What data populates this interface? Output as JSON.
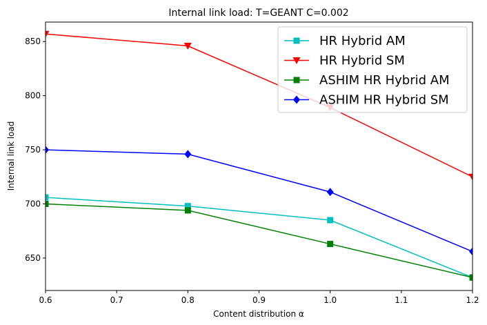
{
  "chart_data": {
    "type": "line",
    "title": "Internal link load: T=GEANT C=0.002",
    "xlabel": "Content distribution α",
    "ylabel": "Internal link load",
    "xlim": [
      0.6,
      1.2
    ],
    "ylim": [
      620,
      868
    ],
    "xticks": [
      "0.6",
      "0.7",
      "0.8",
      "0.9",
      "1.0",
      "1.1",
      "1.2"
    ],
    "yticks": [
      "650",
      "700",
      "750",
      "800",
      "850"
    ],
    "x": [
      0.6,
      0.8,
      1.0,
      1.2
    ],
    "legend_position": "top-right",
    "grid": false,
    "series": [
      {
        "name": "HR Hybrid AM",
        "color": "#00bfbf",
        "marker": "square",
        "values": [
          706,
          698,
          685,
          632
        ]
      },
      {
        "name": "HR Hybrid SM",
        "color": "#ff0000",
        "marker": "triangle-down",
        "values": [
          857,
          846,
          789,
          725
        ]
      },
      {
        "name": "ASHIM HR Hybrid AM",
        "color": "#008000",
        "marker": "square",
        "values": [
          700,
          694,
          663,
          632
        ]
      },
      {
        "name": "ASHIM HR Hybrid SM",
        "color": "#0000ff",
        "marker": "diamond",
        "values": [
          750,
          746,
          711,
          656
        ]
      }
    ]
  }
}
